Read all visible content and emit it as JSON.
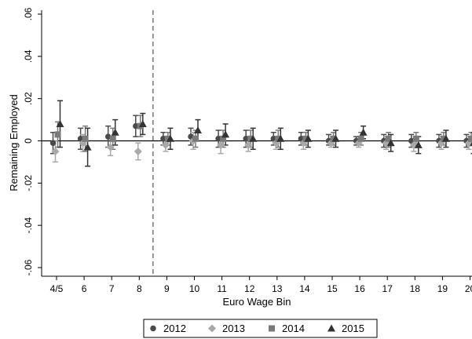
{
  "chart_data": {
    "type": "scatter",
    "title": "",
    "xlabel": "Euro Wage Bin",
    "ylabel": "Remaining Employed",
    "ylim": [
      -0.06,
      0.06
    ],
    "yticks": [
      -0.06,
      -0.04,
      -0.02,
      0,
      0.02,
      0.04,
      0.06
    ],
    "ytick_labels": [
      "-.06",
      "-.04",
      "-.02",
      "0",
      ".02",
      ".04",
      ".06"
    ],
    "categories": [
      "4/5",
      "6",
      "7",
      "8",
      "9",
      "10",
      "11",
      "12",
      "13",
      "14",
      "15",
      "16",
      "17",
      "18",
      "19",
      "20"
    ],
    "reference_line_after_category": "8",
    "zero_line": true,
    "legend_position": "bottom",
    "series": [
      {
        "name": "2012",
        "marker": "circle",
        "color": "#4a4a4a",
        "values": [
          -0.001,
          0.001,
          0.002,
          0.007,
          0.001,
          0.002,
          0.001,
          0.001,
          0.001,
          0.001,
          0.0,
          0.0,
          0.0,
          0.0,
          0.0,
          0.0
        ],
        "ci_low": [
          -0.006,
          -0.004,
          -0.003,
          0.002,
          -0.002,
          -0.002,
          -0.003,
          -0.003,
          -0.002,
          -0.002,
          -0.002,
          -0.002,
          -0.003,
          -0.003,
          -0.003,
          -0.003
        ],
        "ci_high": [
          0.004,
          0.006,
          0.007,
          0.012,
          0.004,
          0.006,
          0.005,
          0.005,
          0.004,
          0.004,
          0.003,
          0.002,
          0.003,
          0.003,
          0.003,
          0.003
        ]
      },
      {
        "name": "2013",
        "marker": "diamond",
        "color": "#a9a9a9",
        "values": [
          -0.005,
          -0.001,
          -0.003,
          -0.005,
          -0.002,
          0.0,
          -0.002,
          -0.002,
          -0.001,
          -0.001,
          -0.001,
          -0.001,
          -0.001,
          -0.002,
          -0.001,
          -0.001
        ],
        "ci_low": [
          -0.01,
          -0.005,
          -0.007,
          -0.009,
          -0.005,
          -0.004,
          -0.006,
          -0.005,
          -0.004,
          -0.004,
          -0.003,
          -0.003,
          -0.004,
          -0.005,
          -0.004,
          -0.004
        ],
        "ci_high": [
          0.0,
          0.003,
          0.001,
          -0.001,
          0.001,
          0.004,
          0.002,
          0.001,
          0.002,
          0.002,
          0.001,
          0.001,
          0.002,
          0.001,
          0.002,
          0.002
        ]
      },
      {
        "name": "2014",
        "marker": "square",
        "color": "#7a7a7a",
        "values": [
          0.003,
          0.001,
          0.001,
          0.007,
          0.001,
          0.001,
          0.001,
          0.001,
          0.001,
          0.001,
          0.001,
          0.001,
          0.001,
          0.001,
          0.001,
          0.001
        ],
        "ci_low": [
          -0.003,
          -0.005,
          -0.004,
          0.002,
          -0.002,
          -0.003,
          -0.003,
          -0.003,
          -0.003,
          -0.002,
          -0.002,
          -0.002,
          -0.003,
          -0.003,
          -0.002,
          -0.002
        ],
        "ci_high": [
          0.009,
          0.007,
          0.006,
          0.012,
          0.004,
          0.005,
          0.005,
          0.005,
          0.005,
          0.004,
          0.004,
          0.004,
          0.004,
          0.004,
          0.004,
          0.004
        ]
      },
      {
        "name": "2015",
        "marker": "triangle",
        "color": "#333333",
        "values": [
          0.008,
          -0.003,
          0.004,
          0.008,
          0.001,
          0.005,
          0.003,
          0.001,
          0.001,
          0.001,
          0.001,
          0.004,
          -0.001,
          -0.002,
          0.001,
          -0.001
        ],
        "ci_low": [
          -0.003,
          -0.012,
          -0.002,
          0.003,
          -0.004,
          0.0,
          -0.002,
          -0.004,
          -0.004,
          -0.003,
          -0.003,
          0.001,
          -0.005,
          -0.006,
          -0.003,
          -0.006
        ],
        "ci_high": [
          0.019,
          0.006,
          0.01,
          0.013,
          0.006,
          0.01,
          0.008,
          0.006,
          0.006,
          0.005,
          0.005,
          0.007,
          0.003,
          0.002,
          0.005,
          0.004
        ]
      }
    ]
  }
}
